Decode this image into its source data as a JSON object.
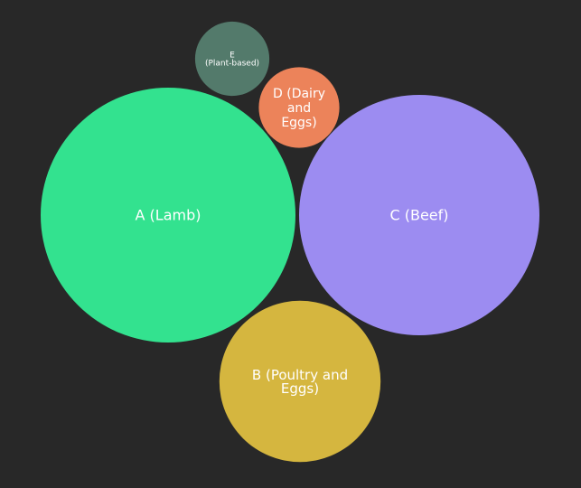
{
  "chart_data": {
    "type": "bubble",
    "title": "",
    "items": [
      {
        "label": "A (Lamb)",
        "lines": [
          "A (Lamb)"
        ],
        "value": 100,
        "color": "#33e28f"
      },
      {
        "label": "B (Poultry and Eggs)",
        "lines": [
          "B (Poultry and",
          "Eggs)"
        ],
        "value": 40,
        "color": "#d5b63f"
      },
      {
        "label": "C (Beef)",
        "lines": [
          "C (Beef)"
        ],
        "value": 89,
        "color": "#9c8cf1"
      },
      {
        "label": "D (Dairy and Eggs)",
        "lines": [
          "D (Dairy",
          "and",
          "Eggs)"
        ],
        "value": 10,
        "color": "#ec835a"
      },
      {
        "label": "E (Plant-based)",
        "lines": [
          "E",
          "(Plant-based)"
        ],
        "value": 8.5,
        "color": "#537a6b"
      }
    ]
  }
}
